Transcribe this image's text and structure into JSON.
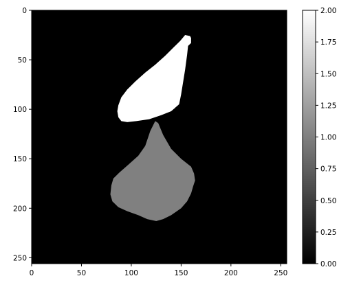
{
  "chart_data": {
    "type": "heatmap",
    "title": "",
    "xlabel": "",
    "ylabel": "",
    "xlim": [
      0,
      256
    ],
    "ylim": [
      256,
      0
    ],
    "x_ticks": [
      0,
      50,
      100,
      150,
      200,
      250
    ],
    "y_ticks": [
      0,
      50,
      100,
      150,
      200,
      250
    ],
    "colormap": "gray",
    "background_value": 0,
    "regions": [
      {
        "name": "region-value-2",
        "value": 2,
        "color": "#ffffff",
        "outline": [
          [
            154,
            25
          ],
          [
            159,
            26
          ],
          [
            160,
            28
          ],
          [
            160,
            33
          ],
          [
            157,
            36
          ],
          [
            156,
            45
          ],
          [
            154,
            60
          ],
          [
            150,
            85
          ],
          [
            148,
            95
          ],
          [
            140,
            102
          ],
          [
            130,
            106
          ],
          [
            118,
            110
          ],
          [
            105,
            112
          ],
          [
            96,
            113
          ],
          [
            90,
            112
          ],
          [
            87,
            108
          ],
          [
            86,
            102
          ],
          [
            87,
            96
          ],
          [
            90,
            88
          ],
          [
            96,
            80
          ],
          [
            104,
            72
          ],
          [
            114,
            63
          ],
          [
            124,
            55
          ],
          [
            134,
            46
          ],
          [
            143,
            37
          ],
          [
            149,
            31
          ]
        ]
      },
      {
        "name": "region-value-1",
        "value": 1,
        "color": "#808080",
        "outline": [
          [
            124,
            112
          ],
          [
            127,
            114
          ],
          [
            132,
            126
          ],
          [
            140,
            140
          ],
          [
            150,
            150
          ],
          [
            160,
            158
          ],
          [
            163,
            165
          ],
          [
            164,
            172
          ],
          [
            162,
            178
          ],
          [
            160,
            185
          ],
          [
            156,
            193
          ],
          [
            150,
            200
          ],
          [
            140,
            207
          ],
          [
            132,
            211
          ],
          [
            125,
            213
          ],
          [
            116,
            211
          ],
          [
            107,
            207
          ],
          [
            96,
            203
          ],
          [
            87,
            199
          ],
          [
            81,
            193
          ],
          [
            79,
            186
          ],
          [
            80,
            177
          ],
          [
            82,
            170
          ],
          [
            88,
            164
          ],
          [
            97,
            156
          ],
          [
            107,
            147
          ],
          [
            114,
            137
          ],
          [
            119,
            122
          ]
        ]
      }
    ],
    "colorbar": {
      "vmin": 0,
      "vmax": 2,
      "ticks": [
        "0.00",
        "0.25",
        "0.50",
        "0.75",
        "1.00",
        "1.25",
        "1.50",
        "1.75",
        "2.00"
      ]
    }
  }
}
